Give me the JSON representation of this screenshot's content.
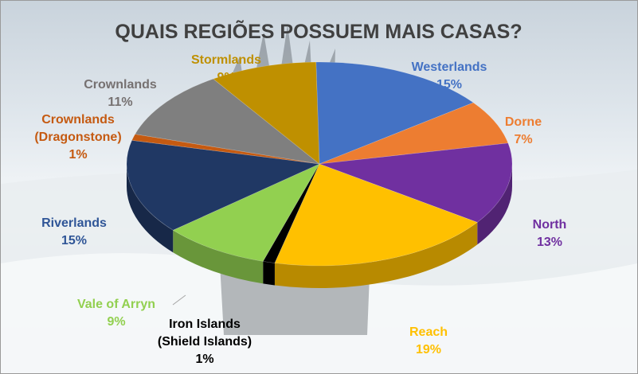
{
  "chart_data": {
    "type": "pie",
    "title": "QUAIS REGIÕES POSSUEM MAIS CASAS?",
    "slices": [
      {
        "name": "Westerlands",
        "value": 15,
        "label": "15%",
        "color": "#4472c4"
      },
      {
        "name": "Dorne",
        "value": 7,
        "label": "7%",
        "color": "#ed7d31"
      },
      {
        "name": "North",
        "value": 13,
        "label": "13%",
        "color": "#7030a0"
      },
      {
        "name": "Reach",
        "value": 19,
        "label": "19%",
        "color": "#ffc000"
      },
      {
        "name": "Iron Islands (Shield Islands)",
        "value": 1,
        "label": "1%",
        "color": "#000000"
      },
      {
        "name": "Vale of Arryn",
        "value": 9,
        "label": "9%",
        "color": "#92d050"
      },
      {
        "name": "Riverlands",
        "value": 15,
        "label": "15%",
        "color": "#203864"
      },
      {
        "name": "Crownlands (Dragonstone)",
        "value": 1,
        "label": "1%",
        "color": "#c55a11"
      },
      {
        "name": "Crownlands",
        "value": 11,
        "label": "11%",
        "color": "#7f7f7f"
      },
      {
        "name": "Stormlands",
        "value": 9,
        "label": "9%",
        "color": "#bf9000"
      }
    ],
    "label_colors": {
      "Westerlands": "#4472c4",
      "Dorne": "#ed7d31",
      "North": "#7030a0",
      "Reach": "#ffc000",
      "Iron Islands (Shield Islands)": "#000000",
      "Vale of Arryn": "#92d050",
      "Riverlands": "#2f5597",
      "Crownlands (Dragonstone)": "#c55a11",
      "Crownlands": "#767171",
      "Stormlands": "#bf9000"
    },
    "legend": "none",
    "style": "3d-tilted"
  }
}
